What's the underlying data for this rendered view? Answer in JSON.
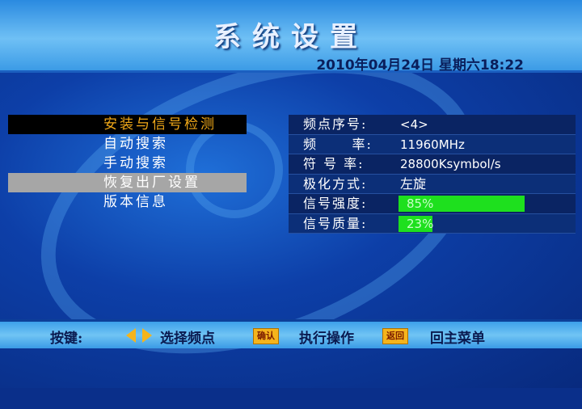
{
  "header": {
    "title": "系统设置",
    "datetime": "2010年04月24日 星期六18:22"
  },
  "menu": {
    "items": [
      {
        "label": "安装与信号检测",
        "state": "active"
      },
      {
        "label": "自动搜索",
        "state": "normal"
      },
      {
        "label": "手动搜索",
        "state": "normal"
      },
      {
        "label": "恢复出厂设置",
        "state": "highlighted"
      },
      {
        "label": "版本信息",
        "state": "normal"
      }
    ]
  },
  "info": {
    "channel_label": "频点序号:",
    "channel_value": "<4>",
    "freq_label": "频      率:",
    "freq_value": "11960MHz",
    "symbol_label": "符 号 率:",
    "symbol_value": "28800Ksymbol/s",
    "pol_label": "极化方式:",
    "pol_value": "左旋",
    "strength_label": "信号强度:",
    "strength_value": "85%",
    "strength_pct": 85,
    "quality_label": "信号质量:",
    "quality_value": "23%",
    "quality_pct": 23,
    "bar_color": "#1ee01e"
  },
  "footer": {
    "keys_label": "按键:",
    "lr_text": "选择频点",
    "ok_key": "确认",
    "ok_text": "执行操作",
    "back_key": "返回",
    "back_text": "回主菜单"
  }
}
